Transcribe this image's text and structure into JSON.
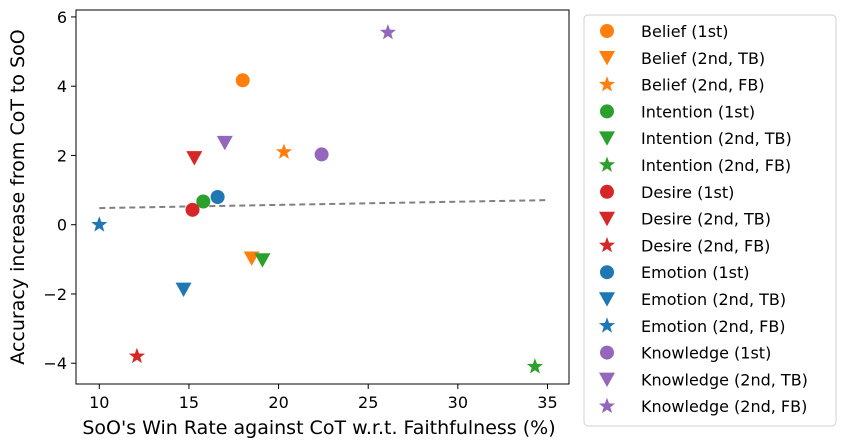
{
  "chart_data": {
    "type": "scatter",
    "xlabel": "SoO's Win Rate against CoT w.r.t. Faithfulness (%)",
    "ylabel": "Accuracy increase from CoT to SoO",
    "xlim": [
      8.7,
      36.2
    ],
    "ylim": [
      -4.6,
      6.2
    ],
    "xticks": [
      10,
      15,
      20,
      25,
      30,
      35
    ],
    "yticks": [
      -4,
      -2,
      0,
      2,
      4,
      6
    ],
    "xtick_labels": [
      "10",
      "15",
      "20",
      "25",
      "30",
      "35"
    ],
    "ytick_labels": [
      "−4",
      "−2",
      "0",
      "2",
      "4",
      "6"
    ],
    "grid": false,
    "legend_position": "outside-right",
    "trend_line": {
      "style": "dashed",
      "color": "#808080",
      "x": [
        10,
        35
      ],
      "y": [
        0.48,
        0.71
      ]
    },
    "series": [
      {
        "name": "Belief (1st)",
        "marker": "circle",
        "color": "#ff7f0e",
        "x": 18.0,
        "y": 4.17
      },
      {
        "name": "Belief (2nd, TB)",
        "marker": "triangle-down",
        "color": "#ff7f0e",
        "x": 18.5,
        "y": -0.97
      },
      {
        "name": "Belief (2nd, FB)",
        "marker": "star",
        "color": "#ff7f0e",
        "x": 20.3,
        "y": 2.1
      },
      {
        "name": "Intention (1st)",
        "marker": "circle",
        "color": "#2ca02c",
        "x": 15.8,
        "y": 0.67
      },
      {
        "name": "Intention (2nd, TB)",
        "marker": "triangle-down",
        "color": "#2ca02c",
        "x": 19.1,
        "y": -1.02
      },
      {
        "name": "Intention (2nd, FB)",
        "marker": "star",
        "color": "#2ca02c",
        "x": 34.3,
        "y": -4.1
      },
      {
        "name": "Desire (1st)",
        "marker": "circle",
        "color": "#d62728",
        "x": 15.2,
        "y": 0.43
      },
      {
        "name": "Desire (2nd, TB)",
        "marker": "triangle-down",
        "color": "#d62728",
        "x": 15.3,
        "y": 1.93
      },
      {
        "name": "Desire (2nd, FB)",
        "marker": "star",
        "color": "#d62728",
        "x": 12.1,
        "y": -3.8
      },
      {
        "name": "Emotion (1st)",
        "marker": "circle",
        "color": "#1f77b4",
        "x": 16.6,
        "y": 0.8
      },
      {
        "name": "Emotion (2nd, TB)",
        "marker": "triangle-down",
        "color": "#1f77b4",
        "x": 14.7,
        "y": -1.87
      },
      {
        "name": "Emotion (2nd, FB)",
        "marker": "star",
        "color": "#1f77b4",
        "x": 10.0,
        "y": 0.0
      },
      {
        "name": "Knowledge (1st)",
        "marker": "circle",
        "color": "#9467bd",
        "x": 22.4,
        "y": 2.03
      },
      {
        "name": "Knowledge (2nd, TB)",
        "marker": "triangle-down",
        "color": "#9467bd",
        "x": 17.0,
        "y": 2.37
      },
      {
        "name": "Knowledge (2nd, FB)",
        "marker": "star",
        "color": "#9467bd",
        "x": 26.1,
        "y": 5.55
      }
    ]
  }
}
